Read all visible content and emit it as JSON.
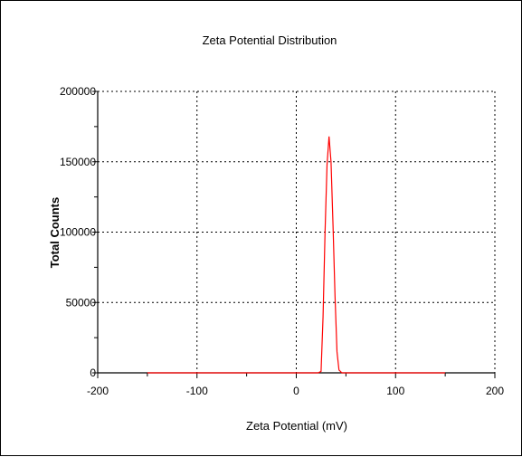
{
  "chart_data": {
    "type": "line",
    "title": "Zeta Potential Distribution",
    "xlabel": "Zeta Potential (mV)",
    "ylabel": "Total Counts",
    "xlim": [
      -200,
      200
    ],
    "ylim": [
      0,
      200000
    ],
    "xticks": [
      -200,
      -100,
      0,
      100,
      200
    ],
    "yticks": [
      0,
      50000,
      100000,
      150000,
      200000
    ],
    "grid": true,
    "series": [
      {
        "color": "#ff0000",
        "points": [
          [
            -150,
            0
          ],
          [
            22,
            0
          ],
          [
            25,
            1000
          ],
          [
            27,
            40000
          ],
          [
            29,
            100000
          ],
          [
            31,
            148000
          ],
          [
            33,
            168000
          ],
          [
            35,
            150000
          ],
          [
            37,
            105000
          ],
          [
            39,
            55000
          ],
          [
            41,
            15000
          ],
          [
            43,
            2000
          ],
          [
            46,
            0
          ],
          [
            150,
            0
          ]
        ]
      }
    ]
  }
}
